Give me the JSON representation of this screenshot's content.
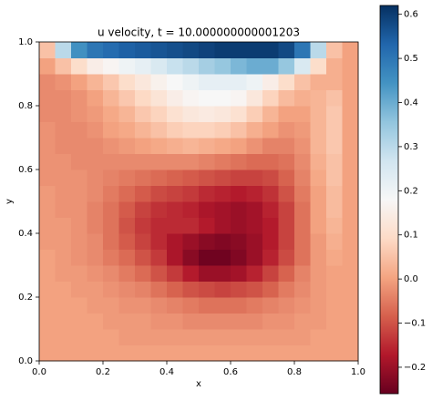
{
  "chart_data": {
    "type": "heatmap",
    "title": "u velocity, t = 10.000000000001203",
    "x_label": "x",
    "y_label": "y",
    "xlim": [
      0,
      1
    ],
    "ylim": [
      0,
      1
    ],
    "xticks": [
      {
        "value": 0,
        "label": "0.0"
      },
      0.2,
      0.4,
      0.6,
      0.8,
      {
        "value": 1,
        "label": "1.0"
      }
    ],
    "yticks": [
      {
        "value": 0,
        "label": "0.0"
      },
      0.2,
      0.4,
      0.6,
      0.8,
      {
        "value": 1,
        "label": "1.0"
      }
    ],
    "clim": [
      -0.26,
      0.62
    ],
    "cticks": [
      {
        "value": -0.2,
        "label": "−0.2"
      },
      {
        "value": -0.1,
        "label": "−0.1"
      },
      {
        "value": 0,
        "label": "0.0"
      },
      0.1,
      0.2,
      0.3,
      0.4,
      0.5,
      0.6
    ],
    "colormap": [
      "#67001f",
      "#b2182b",
      "#d6604d",
      "#f4a582",
      "#fddbc7",
      "#f7f7f7",
      "#d1e5f0",
      "#92c5de",
      "#4393c3",
      "#2166ac",
      "#053061"
    ],
    "z": [
      [
        0,
        0,
        0,
        0,
        0,
        0,
        0,
        0,
        0,
        0,
        0,
        0,
        0,
        0,
        0,
        0,
        0,
        0,
        0,
        0
      ],
      [
        0,
        0,
        0,
        0,
        0,
        -0.01,
        -0.01,
        -0.01,
        -0.01,
        -0.01,
        -0.01,
        -0.01,
        -0.01,
        -0.01,
        -0.01,
        -0.01,
        -0.01,
        0,
        0,
        0
      ],
      [
        0,
        0,
        0,
        0,
        -0.01,
        -0.01,
        -0.01,
        -0.02,
        -0.02,
        -0.03,
        -0.03,
        -0.03,
        -0.03,
        -0.03,
        -0.02,
        -0.02,
        -0.01,
        -0.01,
        0,
        0
      ],
      [
        0,
        0,
        0,
        -0.01,
        -0.01,
        -0.02,
        -0.02,
        -0.03,
        -0.04,
        -0.05,
        -0.06,
        -0.06,
        -0.06,
        -0.05,
        -0.04,
        -0.03,
        -0.02,
        -0.01,
        0,
        0
      ],
      [
        0,
        0,
        -0.01,
        -0.01,
        -0.02,
        -0.03,
        -0.04,
        -0.06,
        -0.08,
        -0.1,
        -0.11,
        -0.12,
        -0.11,
        -0.1,
        -0.08,
        -0.05,
        -0.03,
        -0.01,
        0,
        0
      ],
      [
        0,
        -0.01,
        -0.01,
        -0.02,
        -0.03,
        -0.05,
        -0.07,
        -0.1,
        -0.13,
        -0.17,
        -0.2,
        -0.2,
        -0.19,
        -0.16,
        -0.12,
        -0.08,
        -0.04,
        -0.01,
        0,
        0
      ],
      [
        0,
        -0.01,
        -0.02,
        -0.03,
        -0.05,
        -0.07,
        -0.1,
        -0.13,
        -0.18,
        -0.22,
        -0.25,
        -0.25,
        -0.23,
        -0.2,
        -0.16,
        -0.11,
        -0.06,
        -0.01,
        0.01,
        0
      ],
      [
        -0.01,
        -0.01,
        -0.02,
        -0.03,
        -0.06,
        -0.09,
        -0.12,
        -0.15,
        -0.18,
        -0.2,
        -0.22,
        -0.23,
        -0.22,
        -0.2,
        -0.17,
        -0.12,
        -0.06,
        -0.01,
        0.02,
        0
      ],
      [
        -0.01,
        -0.01,
        -0.02,
        -0.04,
        -0.06,
        -0.1,
        -0.13,
        -0.15,
        -0.15,
        -0.15,
        -0.17,
        -0.19,
        -0.2,
        -0.19,
        -0.17,
        -0.12,
        -0.06,
        0,
        0.03,
        0
      ],
      [
        -0.01,
        -0.02,
        -0.02,
        -0.04,
        -0.06,
        -0.09,
        -0.12,
        -0.14,
        -0.15,
        -0.16,
        -0.18,
        -0.19,
        -0.2,
        -0.19,
        -0.16,
        -0.12,
        -0.06,
        0,
        0.04,
        0
      ],
      [
        -0.01,
        -0.02,
        -0.02,
        -0.03,
        -0.05,
        -0.07,
        -0.09,
        -0.11,
        -0.12,
        -0.13,
        -0.15,
        -0.16,
        -0.17,
        -0.16,
        -0.14,
        -0.1,
        -0.05,
        0,
        0.04,
        0
      ],
      [
        -0.02,
        -0.02,
        -0.02,
        -0.03,
        -0.04,
        -0.05,
        -0.06,
        -0.07,
        -0.08,
        -0.09,
        -0.1,
        -0.11,
        -0.12,
        -0.12,
        -0.11,
        -0.08,
        -0.04,
        0.01,
        0.05,
        0
      ],
      [
        -0.02,
        -0.02,
        -0.03,
        -0.03,
        -0.03,
        -0.03,
        -0.03,
        -0.03,
        -0.03,
        -0.03,
        -0.04,
        -0.05,
        -0.06,
        -0.07,
        -0.07,
        -0.06,
        -0.03,
        0.02,
        0.05,
        0
      ],
      [
        -0.02,
        -0.03,
        -0.03,
        -0.03,
        -0.02,
        -0.01,
        0,
        0.01,
        0.02,
        0.03,
        0.02,
        0.01,
        0,
        -0.02,
        -0.04,
        -0.04,
        -0.02,
        0.03,
        0.06,
        0
      ],
      [
        -0.02,
        -0.03,
        -0.03,
        -0.02,
        0,
        0.01,
        0.03,
        0.05,
        0.07,
        0.08,
        0.08,
        0.07,
        0.05,
        0.02,
        0,
        -0.02,
        -0.01,
        0.03,
        0.06,
        0
      ],
      [
        -0.03,
        -0.03,
        -0.02,
        -0.01,
        0.01,
        0.03,
        0.06,
        0.08,
        0.11,
        0.13,
        0.14,
        0.13,
        0.11,
        0.07,
        0.03,
        0,
        0,
        0.03,
        0.06,
        0
      ],
      [
        -0.03,
        -0.03,
        -0.02,
        0,
        0.03,
        0.06,
        0.09,
        0.12,
        0.15,
        0.17,
        0.18,
        0.18,
        0.17,
        0.13,
        0.08,
        0.04,
        0.02,
        0.03,
        0.05,
        0
      ],
      [
        -0.03,
        -0.02,
        0,
        0.03,
        0.06,
        0.1,
        0.13,
        0.16,
        0.18,
        0.2,
        0.22,
        0.22,
        0.22,
        0.2,
        0.15,
        0.1,
        0.05,
        0.02,
        0.02,
        0
      ],
      [
        0,
        0.05,
        0.1,
        0.15,
        0.17,
        0.2,
        0.22,
        0.25,
        0.28,
        0.3,
        0.33,
        0.35,
        0.38,
        0.4,
        0.4,
        0.35,
        0.25,
        0.1,
        0.02,
        0
      ],
      [
        0.05,
        0.3,
        0.45,
        0.5,
        0.52,
        0.54,
        0.55,
        0.56,
        0.57,
        0.58,
        0.59,
        0.6,
        0.6,
        0.6,
        0.6,
        0.58,
        0.5,
        0.3,
        0.05,
        0
      ]
    ]
  }
}
